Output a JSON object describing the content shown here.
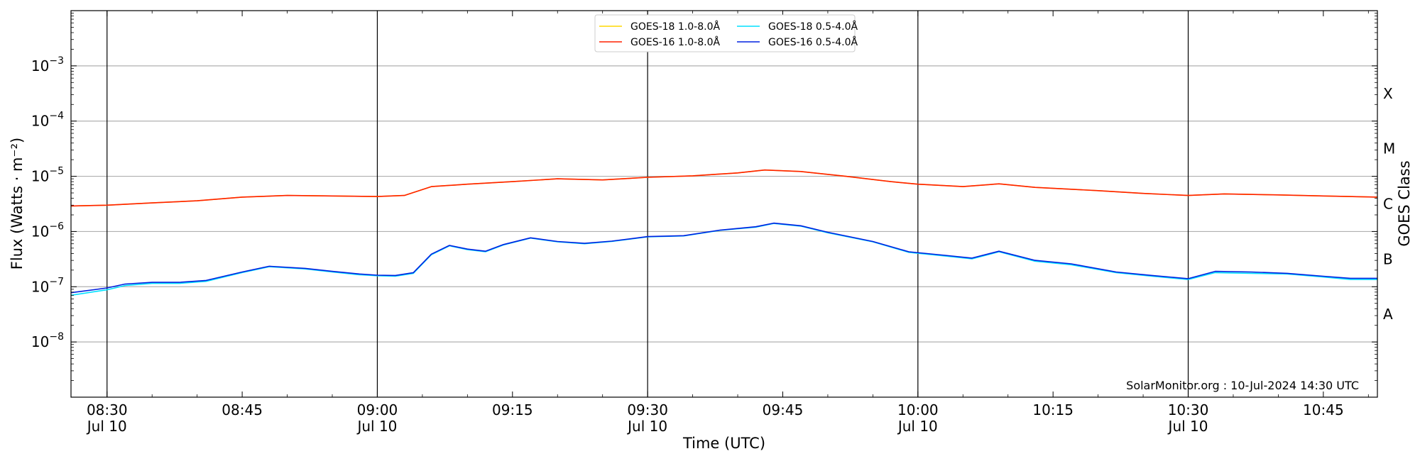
{
  "chart_data": {
    "type": "line",
    "xlabel": "Time (UTC)",
    "ylabel": "Flux (Watts · m⁻²)",
    "right_label": "GOES Class",
    "credit": "SolarMonitor.org : 10-Jul-2024 14:30 UTC",
    "y_scale": "log",
    "ylim": [
      1e-09,
      0.01
    ],
    "xlim": [
      "2024-07-10 08:26",
      "2024-07-10 10:51"
    ],
    "grid": "horizontal at decades",
    "legend_position": "top-center",
    "x_ticks": [
      {
        "time": "08:30",
        "line1": "08:30",
        "line2": "Jul 10",
        "major": true
      },
      {
        "time": "08:45",
        "line1": "08:45",
        "line2": "",
        "major": false
      },
      {
        "time": "09:00",
        "line1": "09:00",
        "line2": "Jul 10",
        "major": true
      },
      {
        "time": "09:15",
        "line1": "09:15",
        "line2": "",
        "major": false
      },
      {
        "time": "09:30",
        "line1": "09:30",
        "line2": "Jul 10",
        "major": true
      },
      {
        "time": "09:45",
        "line1": "09:45",
        "line2": "",
        "major": false
      },
      {
        "time": "10:00",
        "line1": "10:00",
        "line2": "Jul 10",
        "major": true
      },
      {
        "time": "10:15",
        "line1": "10:15",
        "line2": "",
        "major": false
      },
      {
        "time": "10:30",
        "line1": "10:30",
        "line2": "Jul 10",
        "major": true
      },
      {
        "time": "10:45",
        "line1": "10:45",
        "line2": "",
        "major": false
      }
    ],
    "y_ticks": [
      {
        "exp": -8,
        "base": "10",
        "sup": "−8"
      },
      {
        "exp": -7,
        "base": "10",
        "sup": "−7"
      },
      {
        "exp": -6,
        "base": "10",
        "sup": "−6"
      },
      {
        "exp": -5,
        "base": "10",
        "sup": "−5"
      },
      {
        "exp": -4,
        "base": "10",
        "sup": "−4"
      },
      {
        "exp": -3,
        "base": "10",
        "sup": "−3"
      }
    ],
    "class_labels": [
      {
        "label": "A",
        "exp": -7.5
      },
      {
        "label": "B",
        "exp": -6.5
      },
      {
        "label": "C",
        "exp": -5.5
      },
      {
        "label": "M",
        "exp": -4.5
      },
      {
        "label": "X",
        "exp": -3.5
      }
    ],
    "series": [
      {
        "name": "GOES-18 1.0-8.0Å",
        "color": "#ffd700",
        "x": [
          "08:26",
          "08:30",
          "08:35",
          "08:40",
          "08:45",
          "08:50",
          "08:55",
          "09:00",
          "09:03",
          "09:06",
          "09:10",
          "09:15",
          "09:20",
          "09:25",
          "09:30",
          "09:35",
          "09:40",
          "09:43",
          "09:47",
          "09:52",
          "09:57",
          "10:00",
          "10:05",
          "10:09",
          "10:13",
          "10:20",
          "10:25",
          "10:30",
          "10:34",
          "10:40",
          "10:45",
          "10:51"
        ],
        "y": [
          2.9e-06,
          3e-06,
          3.3e-06,
          3.6e-06,
          4.2e-06,
          4.5e-06,
          4.4e-06,
          4.3e-06,
          4.5e-06,
          6.5e-06,
          7.2e-06,
          8e-06,
          9e-06,
          8.6e-06,
          9.6e-06,
          1.02e-05,
          1.15e-05,
          1.3e-05,
          1.22e-05,
          1e-05,
          8e-06,
          7.2e-06,
          6.5e-06,
          7.3e-06,
          6.3e-06,
          5.5e-06,
          4.9e-06,
          4.5e-06,
          4.8e-06,
          4.6e-06,
          4.4e-06,
          4.2e-06
        ]
      },
      {
        "name": "GOES-16 1.0-8.0Å",
        "color": "#ff2000",
        "x": [
          "08:26",
          "08:30",
          "08:35",
          "08:40",
          "08:45",
          "08:50",
          "08:55",
          "09:00",
          "09:03",
          "09:06",
          "09:10",
          "09:15",
          "09:20",
          "09:25",
          "09:30",
          "09:35",
          "09:40",
          "09:43",
          "09:47",
          "09:52",
          "09:57",
          "10:00",
          "10:05",
          "10:09",
          "10:13",
          "10:20",
          "10:25",
          "10:30",
          "10:34",
          "10:40",
          "10:45",
          "10:51"
        ],
        "y": [
          2.9e-06,
          3e-06,
          3.3e-06,
          3.6e-06,
          4.2e-06,
          4.5e-06,
          4.4e-06,
          4.3e-06,
          4.5e-06,
          6.5e-06,
          7.2e-06,
          8e-06,
          9e-06,
          8.6e-06,
          9.6e-06,
          1.02e-05,
          1.15e-05,
          1.3e-05,
          1.22e-05,
          1e-05,
          8e-06,
          7.2e-06,
          6.5e-06,
          7.3e-06,
          6.3e-06,
          5.5e-06,
          4.9e-06,
          4.5e-06,
          4.8e-06,
          4.6e-06,
          4.4e-06,
          4.2e-06
        ]
      },
      {
        "name": "GOES-18 0.5-4.0Å",
        "color": "#00e0ff",
        "x": [
          "08:26",
          "08:30",
          "08:32",
          "08:35",
          "08:38",
          "08:41",
          "08:45",
          "08:48",
          "08:52",
          "08:55",
          "08:58",
          "09:00",
          "09:02",
          "09:04",
          "09:06",
          "09:08",
          "09:10",
          "09:12",
          "09:14",
          "09:17",
          "09:20",
          "09:23",
          "09:26",
          "09:30",
          "09:34",
          "09:38",
          "09:42",
          "09:44",
          "09:47",
          "09:50",
          "09:55",
          "09:59",
          "10:03",
          "10:06",
          "10:09",
          "10:13",
          "10:17",
          "10:22",
          "10:26",
          "10:30",
          "10:33",
          "10:37",
          "10:41",
          "10:45",
          "10:48",
          "10:51"
        ],
        "y": [
          7e-08,
          8.8e-08,
          1.05e-07,
          1.15e-07,
          1.15e-07,
          1.25e-07,
          1.8e-07,
          2.3e-07,
          2.1e-07,
          1.85e-07,
          1.65e-07,
          1.58e-07,
          1.55e-07,
          1.75e-07,
          3.8e-07,
          5.5e-07,
          4.7e-07,
          4.3e-07,
          5.7e-07,
          7.6e-07,
          6.5e-07,
          6e-07,
          6.6e-07,
          8e-07,
          8.3e-07,
          1.05e-06,
          1.2e-06,
          1.4e-06,
          1.25e-06,
          9.5e-07,
          6.5e-07,
          4.2e-07,
          3.6e-07,
          3.2e-07,
          4.3e-07,
          2.9e-07,
          2.5e-07,
          1.8e-07,
          1.55e-07,
          1.35e-07,
          1.8e-07,
          1.75e-07,
          1.7e-07,
          1.5e-07,
          1.35e-07,
          1.35e-07
        ]
      },
      {
        "name": "GOES-16 0.5-4.0Å",
        "color": "#0020e0",
        "x": [
          "08:26",
          "08:30",
          "08:32",
          "08:35",
          "08:38",
          "08:41",
          "08:45",
          "08:48",
          "08:52",
          "08:55",
          "08:58",
          "09:00",
          "09:02",
          "09:04",
          "09:06",
          "09:08",
          "09:10",
          "09:12",
          "09:14",
          "09:17",
          "09:20",
          "09:23",
          "09:26",
          "09:30",
          "09:34",
          "09:38",
          "09:42",
          "09:44",
          "09:47",
          "09:50",
          "09:55",
          "09:59",
          "10:03",
          "10:06",
          "10:09",
          "10:13",
          "10:17",
          "10:22",
          "10:26",
          "10:30",
          "10:33",
          "10:37",
          "10:41",
          "10:45",
          "10:48",
          "10:51"
        ],
        "y": [
          7.8e-08,
          9.5e-08,
          1.12e-07,
          1.2e-07,
          1.2e-07,
          1.3e-07,
          1.85e-07,
          2.35e-07,
          2.15e-07,
          1.9e-07,
          1.7e-07,
          1.62e-07,
          1.6e-07,
          1.8e-07,
          3.9e-07,
          5.6e-07,
          4.8e-07,
          4.4e-07,
          5.8e-07,
          7.7e-07,
          6.6e-07,
          6.1e-07,
          6.7e-07,
          8.1e-07,
          8.4e-07,
          1.06e-06,
          1.22e-06,
          1.42e-06,
          1.27e-06,
          9.7e-07,
          6.6e-07,
          4.3e-07,
          3.7e-07,
          3.3e-07,
          4.4e-07,
          3e-07,
          2.6e-07,
          1.85e-07,
          1.6e-07,
          1.4e-07,
          1.9e-07,
          1.85e-07,
          1.75e-07,
          1.55e-07,
          1.42e-07,
          1.42e-07
        ]
      }
    ]
  }
}
